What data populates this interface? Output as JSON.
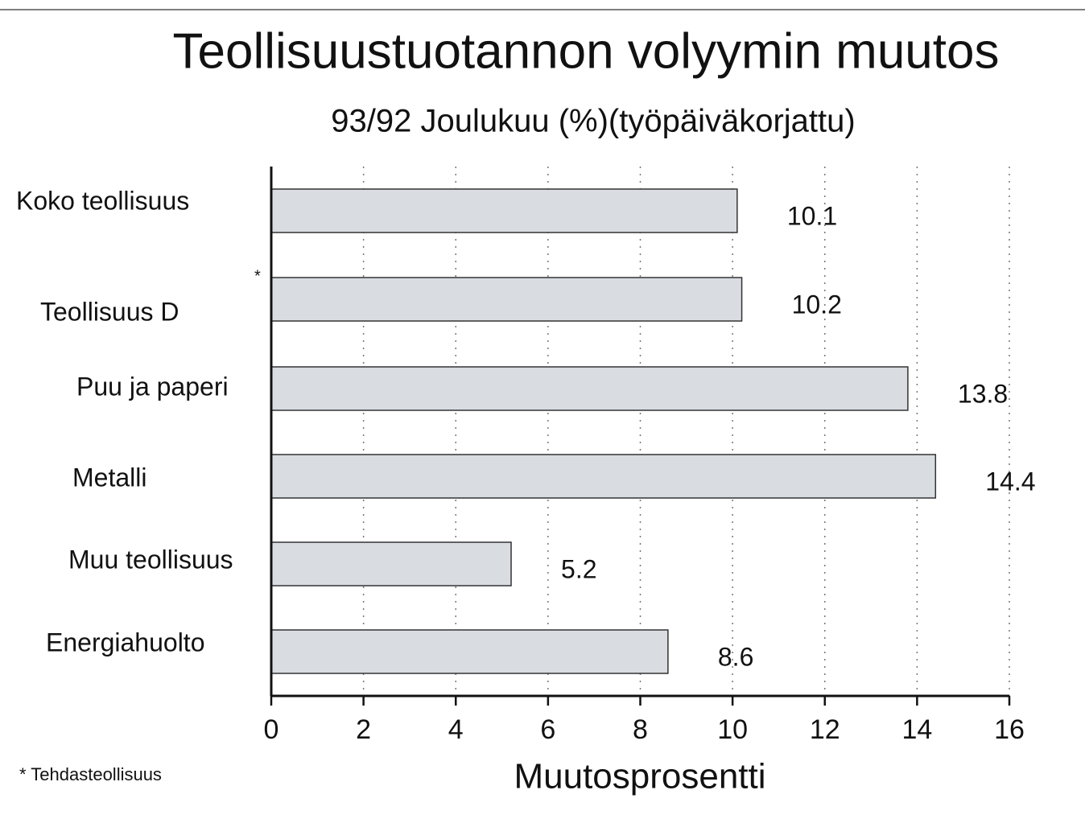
{
  "chart_data": {
    "type": "bar",
    "orientation": "horizontal",
    "title": "Teollisuustuotannon volyymin muutos",
    "subtitle": "93/92 Joulukuu (%)(työpäiväkorjattu)",
    "xlabel": "Muutosprosentti",
    "categories": [
      "Koko teollisuus",
      "Teollisuus D",
      "Puu ja paperi",
      "Metalli",
      "Muu teollisuus",
      "Energiahuolto"
    ],
    "values": [
      10.1,
      10.2,
      13.8,
      14.4,
      5.2,
      8.6
    ],
    "color": "#d9dde2",
    "xlim": [
      0,
      16
    ],
    "xticks": [
      0,
      2,
      4,
      6,
      8,
      10,
      12,
      14,
      16
    ],
    "grid": true,
    "marker": "*",
    "footnote": "* Tehdasteollisuus"
  }
}
